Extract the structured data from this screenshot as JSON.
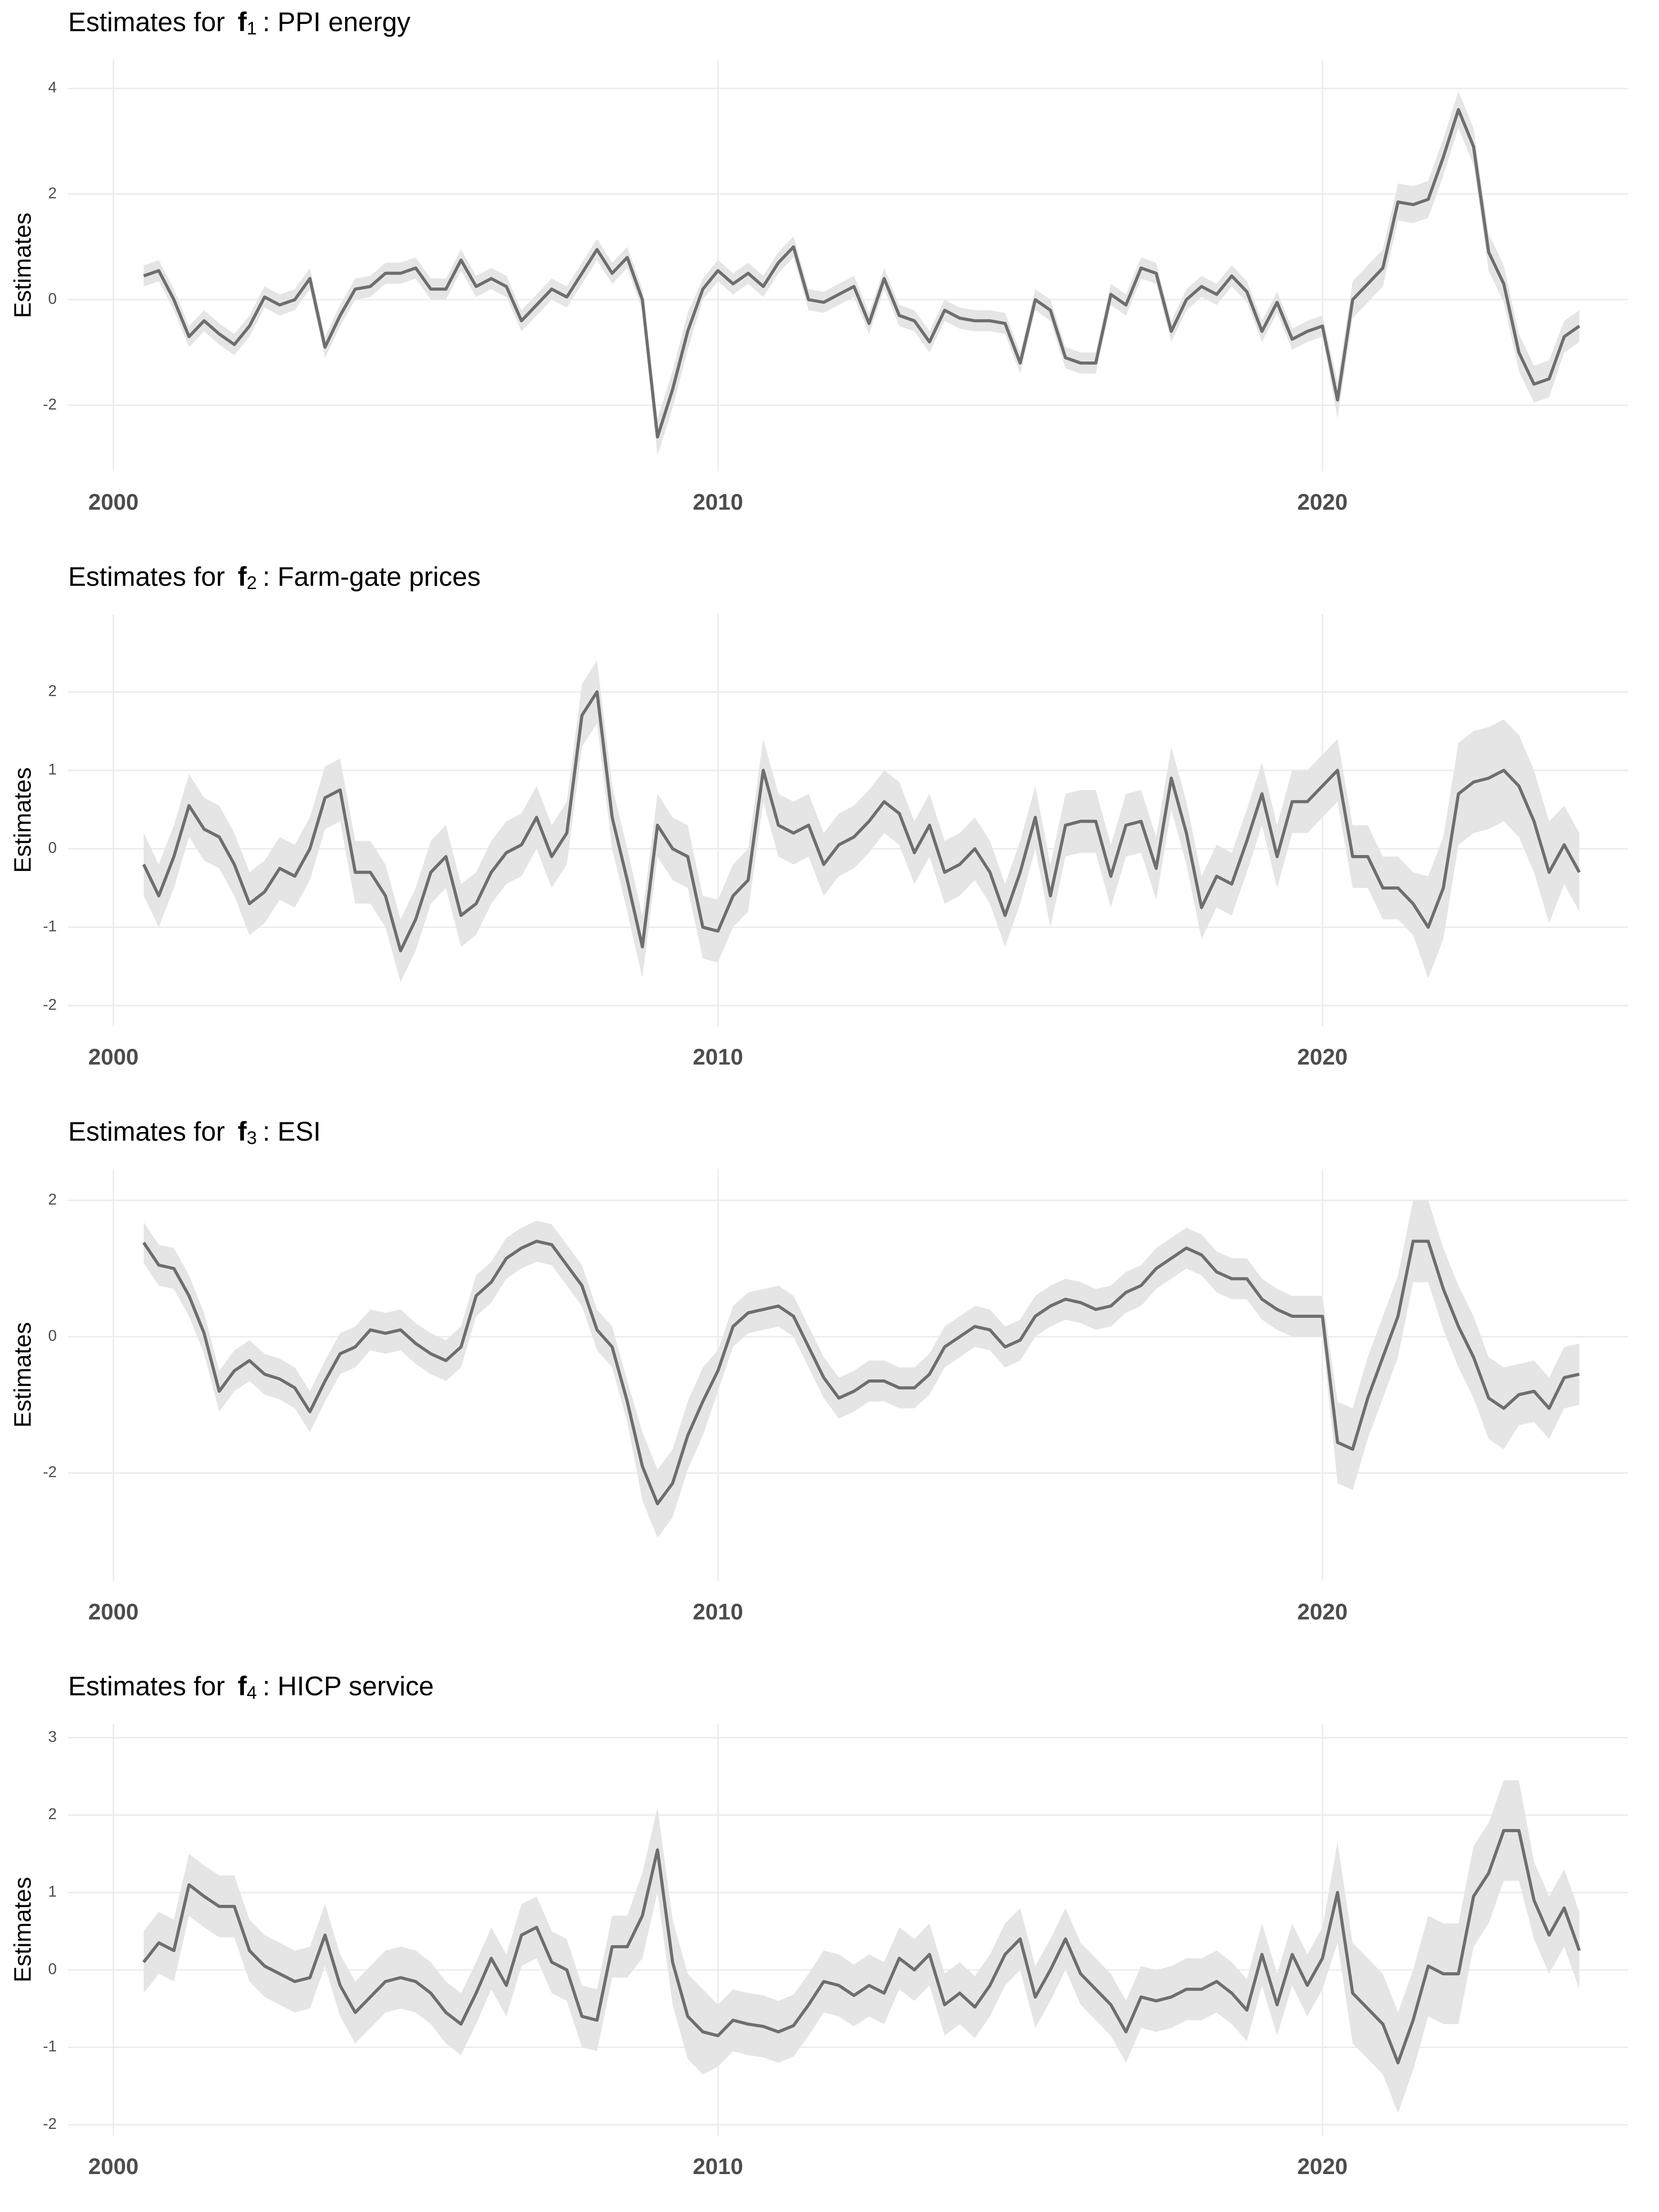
{
  "chart_data": [
    {
      "type": "line",
      "title_prefix": "Estimates for",
      "title_symbol": "f",
      "title_index": "1",
      "title_suffix": ": PPI energy",
      "ylabel": "Estimates",
      "x": [
        2000.5,
        2000.75,
        2001,
        2001.25,
        2001.5,
        2001.75,
        2002,
        2002.25,
        2002.5,
        2002.75,
        2003,
        2003.25,
        2003.5,
        2003.75,
        2004,
        2004.25,
        2004.5,
        2004.75,
        2005,
        2005.25,
        2005.5,
        2005.75,
        2006,
        2006.25,
        2006.5,
        2006.75,
        2007,
        2007.25,
        2007.5,
        2007.75,
        2008,
        2008.25,
        2008.5,
        2008.75,
        2009,
        2009.25,
        2009.5,
        2009.75,
        2010,
        2010.25,
        2010.5,
        2010.75,
        2011,
        2011.25,
        2011.5,
        2011.75,
        2012,
        2012.25,
        2012.5,
        2012.75,
        2013,
        2013.25,
        2013.5,
        2013.75,
        2014,
        2014.25,
        2014.5,
        2014.75,
        2015,
        2015.25,
        2015.5,
        2015.75,
        2016,
        2016.25,
        2016.5,
        2016.75,
        2017,
        2017.25,
        2017.5,
        2017.75,
        2018,
        2018.25,
        2018.5,
        2018.75,
        2019,
        2019.25,
        2019.5,
        2019.75,
        2020,
        2020.25,
        2020.5,
        2020.75,
        2021,
        2021.25,
        2021.5,
        2021.75,
        2022,
        2022.25,
        2022.5,
        2022.75,
        2023,
        2023.25,
        2023.5,
        2023.75,
        2024,
        2024.25
      ],
      "values": [
        0.45,
        0.55,
        0,
        -0.7,
        -0.4,
        -0.65,
        -0.85,
        -0.5,
        0.05,
        -0.1,
        0,
        0.4,
        -0.9,
        -0.3,
        0.2,
        0.25,
        0.5,
        0.5,
        0.6,
        0.2,
        0.2,
        0.75,
        0.25,
        0.4,
        0.25,
        -0.4,
        -0.1,
        0.2,
        0.05,
        0.5,
        0.95,
        0.5,
        0.8,
        0,
        -2.6,
        -1.7,
        -0.6,
        0.2,
        0.55,
        0.3,
        0.5,
        0.25,
        0.7,
        1,
        0,
        -0.05,
        0.1,
        0.25,
        -0.45,
        0.4,
        -0.3,
        -0.4,
        -0.8,
        -0.2,
        -0.35,
        -0.4,
        -0.4,
        -0.45,
        -1.2,
        0,
        -0.2,
        -1.1,
        -1.2,
        -1.2,
        0.1,
        -0.1,
        0.6,
        0.5,
        -0.6,
        0,
        0.25,
        0.1,
        0.45,
        0.15,
        -0.6,
        -0.05,
        -0.75,
        -0.6,
        -0.5,
        -1.9,
        0,
        0.3,
        0.6,
        1.85,
        1.8,
        1.9,
        2.7,
        3.6,
        2.9,
        0.9,
        0.3,
        -1,
        -1.6,
        -1.5,
        -0.7,
        -0.5
      ],
      "errors": [
        0.2,
        0.2,
        0.2,
        0.2,
        0.2,
        0.2,
        0.2,
        0.2,
        0.2,
        0.2,
        0.2,
        0.2,
        0.2,
        0.2,
        0.2,
        0.2,
        0.2,
        0.2,
        0.2,
        0.2,
        0.2,
        0.2,
        0.2,
        0.2,
        0.2,
        0.2,
        0.2,
        0.2,
        0.2,
        0.2,
        0.2,
        0.2,
        0.2,
        0.2,
        0.35,
        0.35,
        0.35,
        0.2,
        0.2,
        0.2,
        0.2,
        0.2,
        0.2,
        0.2,
        0.2,
        0.2,
        0.2,
        0.2,
        0.2,
        0.2,
        0.2,
        0.2,
        0.2,
        0.2,
        0.2,
        0.2,
        0.2,
        0.2,
        0.2,
        0.2,
        0.2,
        0.2,
        0.2,
        0.2,
        0.2,
        0.2,
        0.2,
        0.2,
        0.2,
        0.2,
        0.2,
        0.2,
        0.2,
        0.2,
        0.2,
        0.2,
        0.2,
        0.2,
        0.2,
        0.35,
        0.35,
        0.35,
        0.35,
        0.35,
        0.35,
        0.35,
        0.35,
        0.35,
        0.35,
        0.35,
        0.35,
        0.35,
        0.35,
        0.35,
        0.3,
        0.3
      ],
      "color": "#6e6e6e",
      "band_color": "#e5e5e5",
      "xlim": [
        1999.25,
        2025.05
      ],
      "xticks": [
        2000,
        2010,
        2020
      ],
      "ylim": [
        -3.25,
        4.55
      ],
      "yticks": [
        -2,
        0,
        2,
        4
      ],
      "grid": true
    },
    {
      "type": "line",
      "title_prefix": "Estimates for",
      "title_symbol": "f",
      "title_index": "2",
      "title_suffix": ": Farm-gate prices",
      "ylabel": "Estimates",
      "x": [
        2000.5,
        2000.75,
        2001,
        2001.25,
        2001.5,
        2001.75,
        2002,
        2002.25,
        2002.5,
        2002.75,
        2003,
        2003.25,
        2003.5,
        2003.75,
        2004,
        2004.25,
        2004.5,
        2004.75,
        2005,
        2005.25,
        2005.5,
        2005.75,
        2006,
        2006.25,
        2006.5,
        2006.75,
        2007,
        2007.25,
        2007.5,
        2007.75,
        2008,
        2008.25,
        2008.5,
        2008.75,
        2009,
        2009.25,
        2009.5,
        2009.75,
        2010,
        2010.25,
        2010.5,
        2010.75,
        2011,
        2011.25,
        2011.5,
        2011.75,
        2012,
        2012.25,
        2012.5,
        2012.75,
        2013,
        2013.25,
        2013.5,
        2013.75,
        2014,
        2014.25,
        2014.5,
        2014.75,
        2015,
        2015.25,
        2015.5,
        2015.75,
        2016,
        2016.25,
        2016.5,
        2016.75,
        2017,
        2017.25,
        2017.5,
        2017.75,
        2018,
        2018.25,
        2018.5,
        2018.75,
        2019,
        2019.25,
        2019.5,
        2019.75,
        2020,
        2020.25,
        2020.5,
        2020.75,
        2021,
        2021.25,
        2021.5,
        2021.75,
        2022,
        2022.25,
        2022.5,
        2022.75,
        2023,
        2023.25,
        2023.5,
        2023.75,
        2024,
        2024.25
      ],
      "values": [
        -0.2,
        -0.6,
        -0.1,
        0.55,
        0.25,
        0.15,
        -0.2,
        -0.7,
        -0.55,
        -0.25,
        -0.35,
        0,
        0.65,
        0.75,
        -0.3,
        -0.3,
        -0.6,
        -1.3,
        -0.9,
        -0.3,
        -0.1,
        -0.85,
        -0.7,
        -0.3,
        -0.05,
        0.05,
        0.4,
        -0.1,
        0.2,
        1.7,
        2,
        0.4,
        -0.4,
        -1.25,
        0.3,
        0,
        -0.1,
        -1,
        -1.05,
        -0.6,
        -0.4,
        1,
        0.3,
        0.2,
        0.3,
        -0.2,
        0.05,
        0.15,
        0.35,
        0.6,
        0.45,
        -0.05,
        0.3,
        -0.3,
        -0.2,
        0,
        -0.3,
        -0.85,
        -0.3,
        0.4,
        -0.6,
        0.3,
        0.35,
        0.35,
        -0.35,
        0.3,
        0.35,
        -0.25,
        0.9,
        0.2,
        -0.75,
        -0.35,
        -0.45,
        0.1,
        0.7,
        -0.1,
        0.6,
        0.6,
        0.8,
        1,
        -0.1,
        -0.1,
        -0.5,
        -0.5,
        -0.7,
        -1,
        -0.5,
        0.7,
        0.85,
        0.9,
        1,
        0.8,
        0.35,
        -0.3,
        0.05,
        -0.3
      ],
      "errors": [
        0.4,
        0.4,
        0.4,
        0.4,
        0.4,
        0.4,
        0.4,
        0.4,
        0.4,
        0.4,
        0.4,
        0.4,
        0.4,
        0.4,
        0.4,
        0.4,
        0.4,
        0.4,
        0.4,
        0.4,
        0.4,
        0.4,
        0.4,
        0.4,
        0.4,
        0.4,
        0.4,
        0.4,
        0.4,
        0.4,
        0.4,
        0.4,
        0.4,
        0.4,
        0.4,
        0.4,
        0.4,
        0.4,
        0.4,
        0.4,
        0.4,
        0.4,
        0.4,
        0.4,
        0.4,
        0.4,
        0.4,
        0.4,
        0.4,
        0.4,
        0.4,
        0.4,
        0.4,
        0.4,
        0.4,
        0.4,
        0.4,
        0.4,
        0.4,
        0.4,
        0.4,
        0.4,
        0.4,
        0.4,
        0.4,
        0.4,
        0.4,
        0.4,
        0.4,
        0.4,
        0.4,
        0.4,
        0.4,
        0.4,
        0.4,
        0.4,
        0.4,
        0.4,
        0.4,
        0.4,
        0.4,
        0.4,
        0.4,
        0.4,
        0.4,
        0.65,
        0.65,
        0.65,
        0.65,
        0.65,
        0.65,
        0.65,
        0.65,
        0.65,
        0.5,
        0.5
      ],
      "color": "#6e6e6e",
      "band_color": "#e5e5e5",
      "xlim": [
        1999.25,
        2025.05
      ],
      "xticks": [
        2000,
        2010,
        2020
      ],
      "ylim": [
        -2.26,
        2.99
      ],
      "yticks": [
        -2,
        -1,
        0,
        1,
        2
      ],
      "grid": true
    },
    {
      "type": "line",
      "title_prefix": "Estimates for",
      "title_symbol": "f",
      "title_index": "3",
      "title_suffix": ": ESI",
      "ylabel": "Estimates",
      "x": [
        2000.5,
        2000.75,
        2001,
        2001.25,
        2001.5,
        2001.75,
        2002,
        2002.25,
        2002.5,
        2002.75,
        2003,
        2003.25,
        2003.5,
        2003.75,
        2004,
        2004.25,
        2004.5,
        2004.75,
        2005,
        2005.25,
        2005.5,
        2005.75,
        2006,
        2006.25,
        2006.5,
        2006.75,
        2007,
        2007.25,
        2007.5,
        2007.75,
        2008,
        2008.25,
        2008.5,
        2008.75,
        2009,
        2009.25,
        2009.5,
        2009.75,
        2010,
        2010.25,
        2010.5,
        2010.75,
        2011,
        2011.25,
        2011.5,
        2011.75,
        2012,
        2012.25,
        2012.5,
        2012.75,
        2013,
        2013.25,
        2013.5,
        2013.75,
        2014,
        2014.25,
        2014.5,
        2014.75,
        2015,
        2015.25,
        2015.5,
        2015.75,
        2016,
        2016.25,
        2016.5,
        2016.75,
        2017,
        2017.25,
        2017.5,
        2017.75,
        2018,
        2018.25,
        2018.5,
        2018.75,
        2019,
        2019.25,
        2019.5,
        2019.75,
        2020,
        2020.25,
        2020.5,
        2020.75,
        2021,
        2021.25,
        2021.5,
        2021.75,
        2022,
        2022.25,
        2022.5,
        2022.75,
        2023,
        2023.25,
        2023.5,
        2023.75,
        2024,
        2024.25
      ],
      "values": [
        1.38,
        1.05,
        1,
        0.6,
        0.05,
        -0.8,
        -0.5,
        -0.35,
        -0.55,
        -0.62,
        -0.75,
        -1.1,
        -0.65,
        -0.25,
        -0.15,
        0.1,
        0.05,
        0.1,
        -0.1,
        -0.25,
        -0.35,
        -0.15,
        0.6,
        0.8,
        1.15,
        1.3,
        1.4,
        1.35,
        1.05,
        0.75,
        0.1,
        -0.15,
        -0.95,
        -1.9,
        -2.45,
        -2.15,
        -1.45,
        -0.95,
        -0.5,
        0.15,
        0.35,
        0.4,
        0.45,
        0.3,
        -0.15,
        -0.6,
        -0.9,
        -0.8,
        -0.65,
        -0.65,
        -0.75,
        -0.75,
        -0.55,
        -0.15,
        0,
        0.15,
        0.1,
        -0.15,
        -0.05,
        0.3,
        0.45,
        0.55,
        0.5,
        0.4,
        0.45,
        0.65,
        0.75,
        1,
        1.15,
        1.3,
        1.2,
        0.95,
        0.85,
        0.85,
        0.55,
        0.4,
        0.3,
        0.3,
        0.3,
        -1.55,
        -1.65,
        -0.9,
        -0.3,
        0.3,
        1.4,
        1.4,
        0.7,
        0.15,
        -0.3,
        -0.9,
        -1.05,
        -0.85,
        -0.8,
        -1.05,
        -0.6,
        -0.55
      ],
      "errors": [
        0.3,
        0.3,
        0.3,
        0.3,
        0.3,
        0.3,
        0.3,
        0.3,
        0.3,
        0.3,
        0.3,
        0.3,
        0.3,
        0.3,
        0.3,
        0.3,
        0.3,
        0.3,
        0.3,
        0.3,
        0.3,
        0.3,
        0.3,
        0.3,
        0.3,
        0.3,
        0.3,
        0.3,
        0.3,
        0.3,
        0.3,
        0.3,
        0.3,
        0.5,
        0.5,
        0.5,
        0.5,
        0.5,
        0.3,
        0.3,
        0.3,
        0.3,
        0.3,
        0.3,
        0.3,
        0.3,
        0.3,
        0.3,
        0.3,
        0.3,
        0.3,
        0.3,
        0.3,
        0.3,
        0.3,
        0.3,
        0.3,
        0.3,
        0.3,
        0.3,
        0.3,
        0.3,
        0.3,
        0.3,
        0.3,
        0.3,
        0.3,
        0.3,
        0.3,
        0.3,
        0.3,
        0.3,
        0.3,
        0.3,
        0.3,
        0.3,
        0.3,
        0.3,
        0.3,
        0.6,
        0.6,
        0.6,
        0.6,
        0.6,
        0.6,
        0.6,
        0.6,
        0.6,
        0.6,
        0.6,
        0.6,
        0.45,
        0.45,
        0.45,
        0.45,
        0.45
      ],
      "color": "#6e6e6e",
      "band_color": "#e5e5e5",
      "xlim": [
        1999.25,
        2025.05
      ],
      "xticks": [
        2000,
        2010,
        2020
      ],
      "ylim": [
        -3.58,
        2.46
      ],
      "yticks": [
        -2,
        0,
        2
      ],
      "grid": true
    },
    {
      "type": "line",
      "title_prefix": "Estimates for",
      "title_symbol": "f",
      "title_index": "4",
      "title_suffix": ": HICP service",
      "ylabel": "Estimates",
      "x": [
        2000.5,
        2000.75,
        2001,
        2001.25,
        2001.5,
        2001.75,
        2002,
        2002.25,
        2002.5,
        2002.75,
        2003,
        2003.25,
        2003.5,
        2003.75,
        2004,
        2004.25,
        2004.5,
        2004.75,
        2005,
        2005.25,
        2005.5,
        2005.75,
        2006,
        2006.25,
        2006.5,
        2006.75,
        2007,
        2007.25,
        2007.5,
        2007.75,
        2008,
        2008.25,
        2008.5,
        2008.75,
        2009,
        2009.25,
        2009.5,
        2009.75,
        2010,
        2010.25,
        2010.5,
        2010.75,
        2011,
        2011.25,
        2011.5,
        2011.75,
        2012,
        2012.25,
        2012.5,
        2012.75,
        2013,
        2013.25,
        2013.5,
        2013.75,
        2014,
        2014.25,
        2014.5,
        2014.75,
        2015,
        2015.25,
        2015.5,
        2015.75,
        2016,
        2016.25,
        2016.5,
        2016.75,
        2017,
        2017.25,
        2017.5,
        2017.75,
        2018,
        2018.25,
        2018.5,
        2018.75,
        2019,
        2019.25,
        2019.5,
        2019.75,
        2020,
        2020.25,
        2020.5,
        2020.75,
        2021,
        2021.25,
        2021.5,
        2021.75,
        2022,
        2022.25,
        2022.5,
        2022.75,
        2023,
        2023.25,
        2023.5,
        2023.75,
        2024,
        2024.25
      ],
      "values": [
        0.1,
        0.35,
        0.25,
        1.1,
        0.95,
        0.82,
        0.82,
        0.25,
        0.05,
        -0.05,
        -0.15,
        -0.1,
        0.45,
        -0.2,
        -0.55,
        -0.35,
        -0.15,
        -0.1,
        -0.15,
        -0.3,
        -0.55,
        -0.7,
        -0.3,
        0.15,
        -0.2,
        0.45,
        0.55,
        0.1,
        0,
        -0.6,
        -0.65,
        0.3,
        0.3,
        0.7,
        1.55,
        0.1,
        -0.6,
        -0.8,
        -0.85,
        -0.65,
        -0.7,
        -0.73,
        -0.8,
        -0.72,
        -0.45,
        -0.15,
        -0.2,
        -0.33,
        -0.2,
        -0.3,
        0.15,
        0,
        0.2,
        -0.45,
        -0.3,
        -0.48,
        -0.2,
        0.2,
        0.4,
        -0.35,
        0,
        0.4,
        -0.05,
        -0.25,
        -0.45,
        -0.8,
        -0.35,
        -0.4,
        -0.35,
        -0.25,
        -0.25,
        -0.15,
        -0.3,
        -0.52,
        0.2,
        -0.45,
        0.2,
        -0.2,
        0.15,
        1,
        -0.3,
        -0.5,
        -0.7,
        -1.2,
        -0.65,
        0.05,
        -0.05,
        -0.05,
        0.95,
        1.25,
        1.8,
        1.8,
        0.9,
        0.45,
        0.8,
        0.25
      ],
      "errors": [
        0.4,
        0.4,
        0.4,
        0.4,
        0.4,
        0.4,
        0.4,
        0.4,
        0.4,
        0.4,
        0.4,
        0.4,
        0.4,
        0.4,
        0.4,
        0.4,
        0.4,
        0.4,
        0.4,
        0.4,
        0.4,
        0.4,
        0.4,
        0.4,
        0.4,
        0.4,
        0.4,
        0.4,
        0.4,
        0.4,
        0.4,
        0.4,
        0.4,
        0.55,
        0.55,
        0.55,
        0.55,
        0.55,
        0.4,
        0.4,
        0.4,
        0.4,
        0.4,
        0.4,
        0.4,
        0.4,
        0.4,
        0.4,
        0.4,
        0.4,
        0.4,
        0.4,
        0.4,
        0.4,
        0.4,
        0.4,
        0.4,
        0.4,
        0.4,
        0.4,
        0.4,
        0.4,
        0.4,
        0.4,
        0.4,
        0.4,
        0.4,
        0.4,
        0.4,
        0.4,
        0.4,
        0.4,
        0.4,
        0.4,
        0.4,
        0.4,
        0.4,
        0.4,
        0.4,
        0.65,
        0.65,
        0.65,
        0.65,
        0.65,
        0.65,
        0.65,
        0.65,
        0.65,
        0.65,
        0.65,
        0.65,
        0.65,
        0.5,
        0.5,
        0.5,
        0.5
      ],
      "color": "#6e6e6e",
      "band_color": "#e5e5e5",
      "xlim": [
        1999.25,
        2025.05
      ],
      "xticks": [
        2000,
        2010,
        2020
      ],
      "ylim": [
        -2.14,
        3.18
      ],
      "yticks": [
        -2,
        -1,
        0,
        1,
        2,
        3
      ],
      "grid": true
    }
  ]
}
